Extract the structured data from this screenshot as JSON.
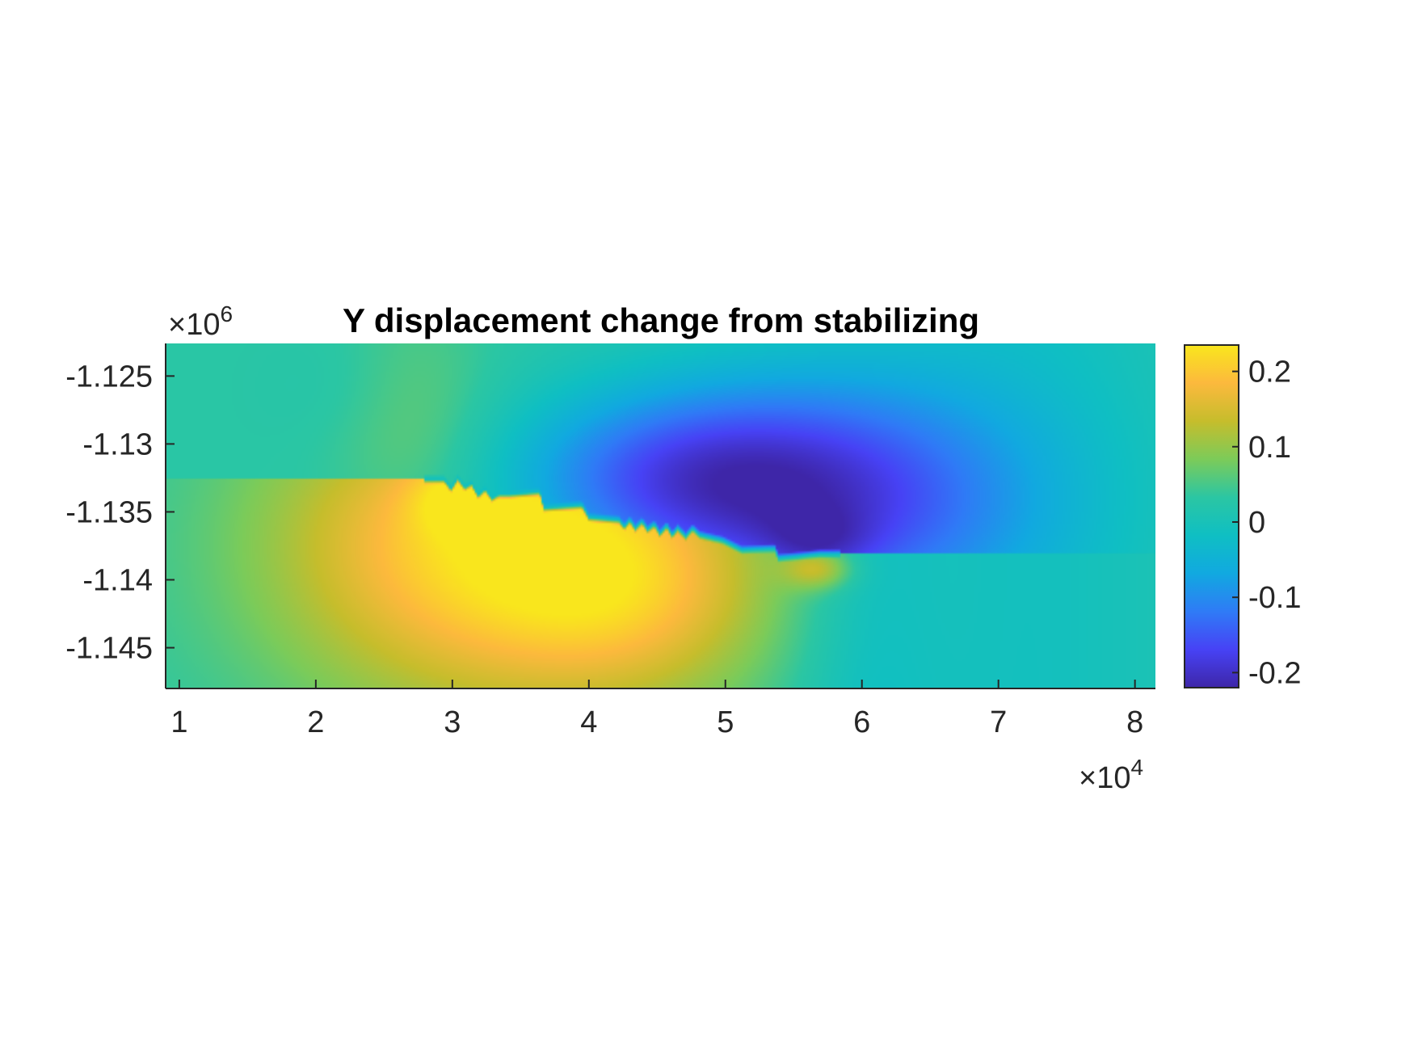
{
  "chart_data": {
    "type": "heatmap",
    "title": "Y displacement change from stabilizing",
    "xlabel": "",
    "ylabel": "",
    "colormap": "parula",
    "colormap_stops": [
      "#3e26a8",
      "#4742f5",
      "#2f7bf6",
      "#11a9e0",
      "#0fbfc3",
      "#2bc6a3",
      "#7ccb59",
      "#c6bd2c",
      "#fcb93d",
      "#f9e61d"
    ],
    "x_axis": {
      "range": [
        9000,
        81500
      ],
      "ticks": [
        10000,
        20000,
        30000,
        40000,
        50000,
        60000,
        70000,
        80000
      ],
      "tick_labels": [
        "1",
        "2",
        "3",
        "4",
        "5",
        "6",
        "7",
        "8"
      ],
      "exponent_base": "×10",
      "exponent_power": "4"
    },
    "y_axis": {
      "range": [
        -1148000,
        -1122600
      ],
      "ticks": [
        -1125000,
        -1130000,
        -1135000,
        -1140000,
        -1145000
      ],
      "tick_labels": [
        "-1.125",
        "-1.13",
        "-1.135",
        "-1.14",
        "-1.145"
      ],
      "exponent_base": "×10",
      "exponent_power": "6"
    },
    "colorbar": {
      "range": [
        -0.22,
        0.235
      ],
      "ticks": [
        0.2,
        0.1,
        0,
        -0.1,
        -0.2
      ],
      "tick_labels": [
        "0.2",
        "0.1",
        "0",
        "-0.1",
        "-0.2"
      ],
      "placement": "right"
    },
    "fault_trace": [
      [
        29400,
        -1132600
      ],
      [
        29900,
        -1133300
      ],
      [
        30400,
        -1132500
      ],
      [
        30900,
        -1133200
      ],
      [
        31400,
        -1132900
      ],
      [
        31900,
        -1133800
      ],
      [
        32400,
        -1133300
      ],
      [
        32900,
        -1134000
      ],
      [
        33400,
        -1133700
      ],
      [
        34200,
        -1133700
      ],
      [
        36400,
        -1133500
      ],
      [
        36700,
        -1134700
      ],
      [
        39500,
        -1134500
      ],
      [
        40000,
        -1135400
      ],
      [
        42200,
        -1135600
      ],
      [
        42600,
        -1136100
      ],
      [
        43000,
        -1135600
      ],
      [
        43400,
        -1136200
      ],
      [
        43900,
        -1135700
      ],
      [
        44300,
        -1136300
      ],
      [
        44800,
        -1135900
      ],
      [
        45200,
        -1136600
      ],
      [
        45700,
        -1136000
      ],
      [
        46100,
        -1136700
      ],
      [
        46500,
        -1136200
      ],
      [
        47100,
        -1136800
      ],
      [
        47600,
        -1136200
      ],
      [
        48100,
        -1136700
      ],
      [
        49800,
        -1137100
      ],
      [
        51200,
        -1137800
      ],
      [
        53600,
        -1137700
      ],
      [
        53900,
        -1138400
      ],
      [
        55000,
        -1138300
      ],
      [
        56900,
        -1138100
      ]
    ],
    "features": [
      {
        "name": "positive-lobe",
        "x": 33000,
        "y": -1137500,
        "value": 0.2,
        "rx": 16000,
        "ry": 12000
      },
      {
        "name": "peak-positive",
        "x": 30700,
        "y": -1134000,
        "value": 0.23,
        "rx": 3500,
        "ry": 2500
      },
      {
        "name": "negative-lobe",
        "x": 56000,
        "y": -1134000,
        "value": -0.2,
        "rx": 15000,
        "ry": 9000
      },
      {
        "name": "peak-negative",
        "x": 56800,
        "y": -1137300,
        "value": -0.22,
        "rx": 4000,
        "ry": 2500
      },
      {
        "name": "local-positive",
        "x": 56800,
        "y": -1139200,
        "value": 0.13,
        "rx": 2500,
        "ry": 1500
      }
    ]
  }
}
